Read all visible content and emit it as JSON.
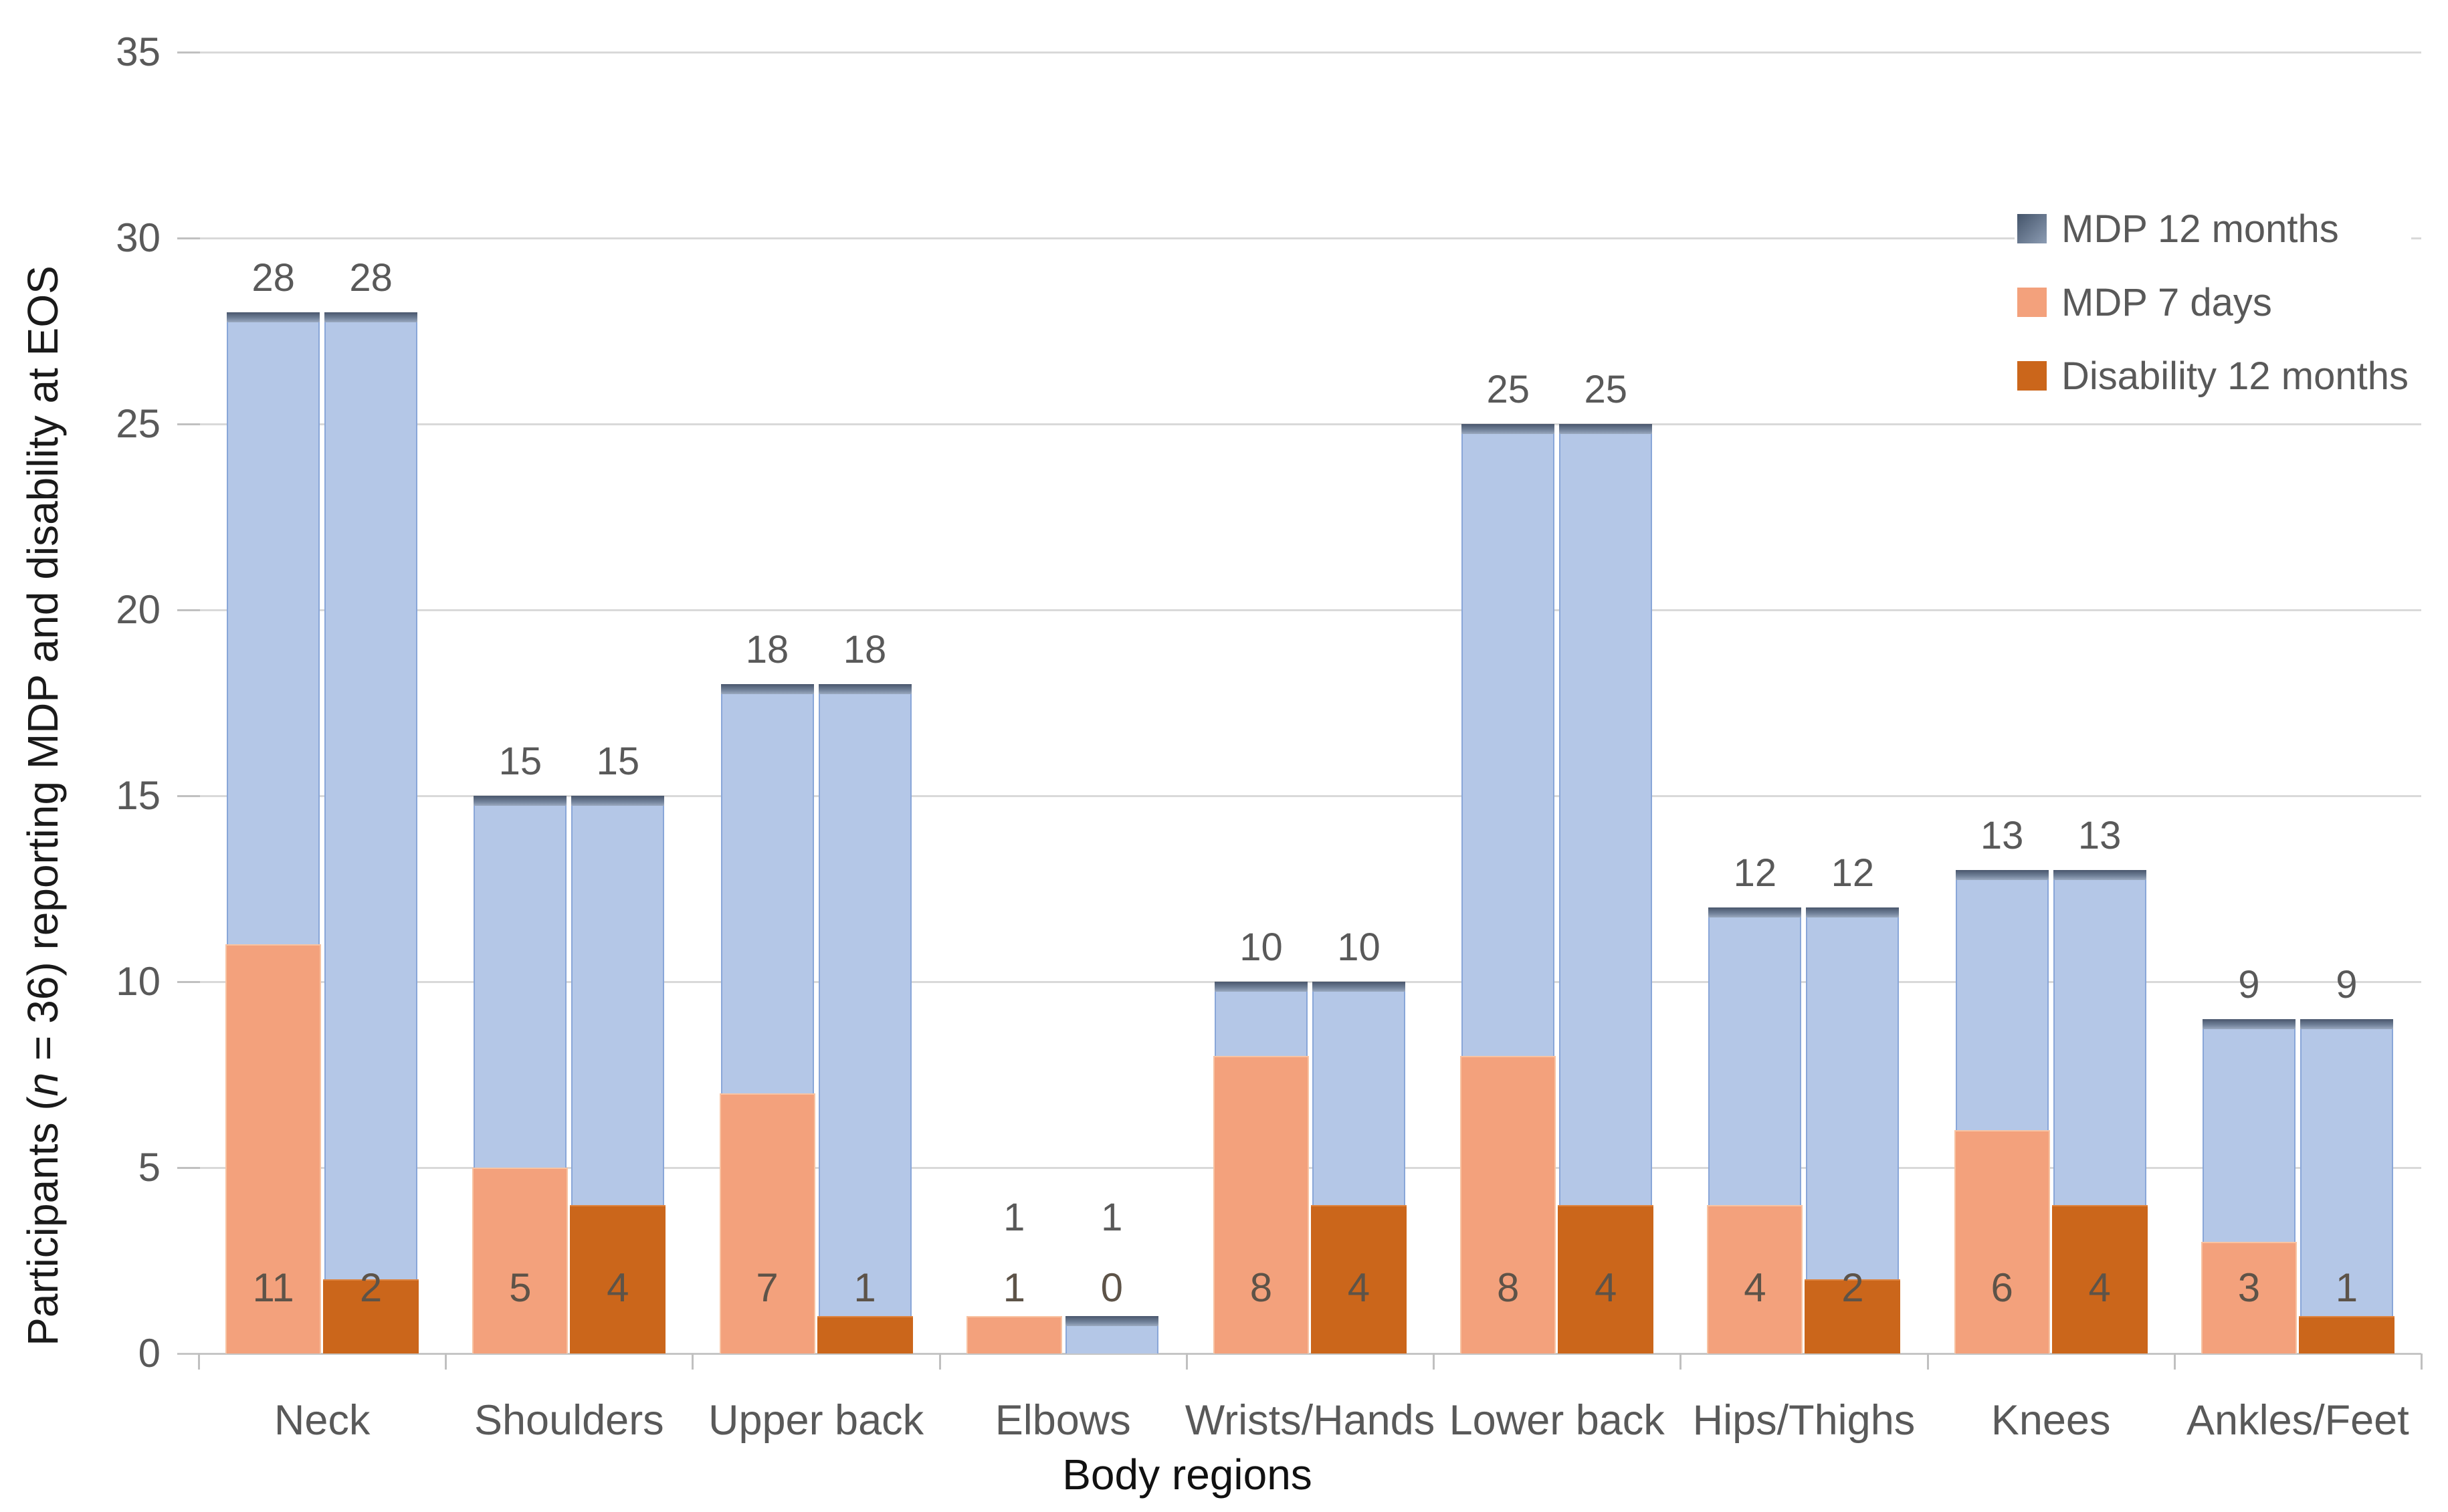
{
  "figure": {
    "y_title_pre": "Participants (",
    "y_title_italic": "n",
    "y_title_post": " = 36) reporting MDP and disability at EOS",
    "x_title": "Body regions"
  },
  "legend": {
    "position": "top-right",
    "items": [
      {
        "label": "MDP 12 months",
        "swatch": [
          "#44546a",
          "#8c9cb3"
        ]
      },
      {
        "label": "MDP 7 days",
        "swatch": [
          "#f3a17c"
        ]
      },
      {
        "label": "Disability 12 months",
        "swatch": [
          "#cb661b"
        ]
      }
    ]
  },
  "chart_data": {
    "type": "bar",
    "title": "",
    "xlabel": "Body regions",
    "ylabel": "Participants (n = 36) reporting MDP and disability at EOS",
    "ylim": [
      0,
      35
    ],
    "yticks": [
      0,
      5,
      10,
      15,
      20,
      25,
      30,
      35
    ],
    "grid": true,
    "legend_position": "top-right",
    "categories": [
      "Neck",
      "Shoulders",
      "Upper back",
      "Elbows",
      "Wrists/Hands",
      "Lower back",
      "Hips/Thighs",
      "Knees",
      "Ankles/Feet"
    ],
    "series": [
      {
        "name": "MDP 12 months",
        "values": [
          28,
          15,
          18,
          1,
          10,
          25,
          12,
          13,
          9
        ]
      },
      {
        "name": "MDP 7 days",
        "values": [
          11,
          5,
          7,
          1,
          8,
          8,
          4,
          6,
          3
        ]
      },
      {
        "name": "Disability 12 months",
        "values": [
          2,
          4,
          1,
          0,
          4,
          4,
          2,
          4,
          1
        ]
      }
    ],
    "bar_layout": "two bars per category; both bars show MDP 12 months in light blue with dark cap; left bar overlaid with MDP 7 days, right bar overlaid with Disability 12 months; MDP 12 month counts labelled above each bar, overlay counts labelled near bar base",
    "colors": {
      "mdp12_fill": "#b4c7e7",
      "mdp12_border": "#89a6d8",
      "cap_dark": "#49566c",
      "cap_light": "#9aa9c0",
      "mdp7_fill": "#f3a17c",
      "disability_fill": "#cb661b",
      "label_gray": "#595959",
      "gridline": "#d9d9d9"
    }
  }
}
